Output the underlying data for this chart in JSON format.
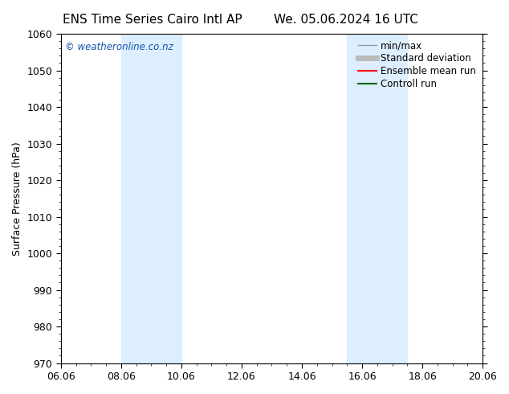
{
  "title_left": "ENS Time Series Cairo Intl AP",
  "title_right": "We. 05.06.2024 16 UTC",
  "ylabel": "Surface Pressure (hPa)",
  "ylim": [
    970,
    1060
  ],
  "yticks": [
    970,
    980,
    990,
    1000,
    1010,
    1020,
    1030,
    1040,
    1050,
    1060
  ],
  "xtick_labels": [
    "06.06",
    "08.06",
    "10.06",
    "12.06",
    "14.06",
    "16.06",
    "18.06",
    "20.06"
  ],
  "xtick_positions": [
    0,
    2,
    4,
    6,
    8,
    10,
    12,
    14
  ],
  "xlim": [
    0,
    14
  ],
  "shaded_bands": [
    {
      "x_start": 2,
      "x_end": 4
    },
    {
      "x_start": 9.5,
      "x_end": 11.5
    }
  ],
  "shaded_color": "#ddeeff",
  "background_color": "#ffffff",
  "watermark_text": "© weatheronline.co.nz",
  "watermark_color": "#1155aa",
  "legend_items": [
    {
      "label": "min/max",
      "color": "#999999",
      "lw": 1.0,
      "ls": "-"
    },
    {
      "label": "Standard deviation",
      "color": "#bbbbbb",
      "lw": 5,
      "ls": "-"
    },
    {
      "label": "Ensemble mean run",
      "color": "#ff0000",
      "lw": 1.5,
      "ls": "-"
    },
    {
      "label": "Controll run",
      "color": "#006600",
      "lw": 1.5,
      "ls": "-"
    }
  ],
  "tick_color": "#000000",
  "axis_label_fontsize": 9,
  "title_fontsize": 11,
  "tick_fontsize": 9,
  "legend_fontsize": 8.5
}
